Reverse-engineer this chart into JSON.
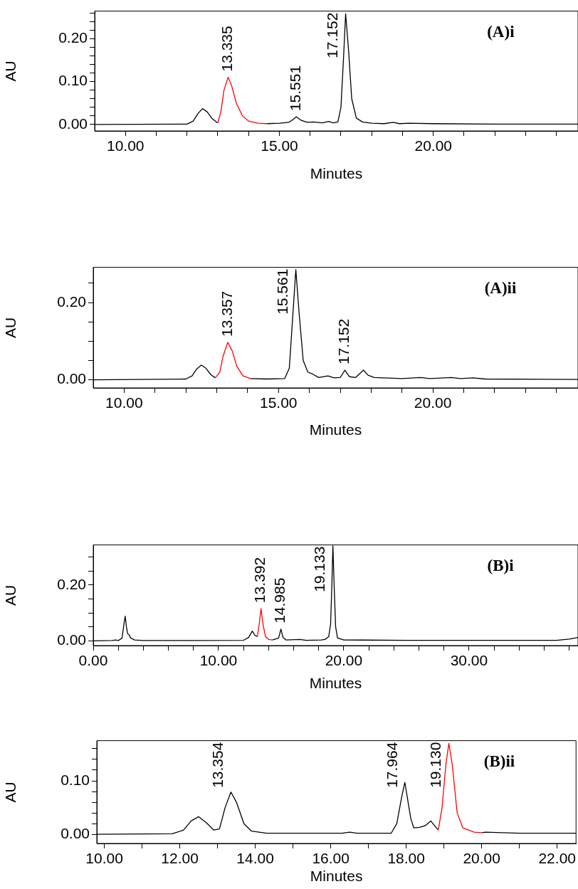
{
  "chart_data": [
    {
      "type": "line",
      "title": "(A)i",
      "xlabel": "Minutes",
      "ylabel": "AU",
      "marker": "none",
      "xlim": [
        9.0,
        24.7
      ],
      "xticks": [
        {
          "value": 10,
          "label": "10.00"
        },
        {
          "value": 11,
          "label": null
        },
        {
          "value": 12,
          "label": null
        },
        {
          "value": 13,
          "label": null
        },
        {
          "value": 14,
          "label": null
        },
        {
          "value": 15,
          "label": "15.00"
        },
        {
          "value": 16,
          "label": null
        },
        {
          "value": 17,
          "label": null
        },
        {
          "value": 18,
          "label": null
        },
        {
          "value": 19,
          "label": null
        },
        {
          "value": 20,
          "label": "20.00"
        },
        {
          "value": 21,
          "label": null
        },
        {
          "value": 22,
          "label": null
        },
        {
          "value": 23,
          "label": null
        },
        {
          "value": 24,
          "label": null
        }
      ],
      "ylim": [
        -0.015,
        0.264
      ],
      "yticks": [
        {
          "value": 0,
          "label": "0.00"
        },
        {
          "value": 0.02,
          "label": null
        },
        {
          "value": 0.04,
          "label": null
        },
        {
          "value": 0.06,
          "label": null
        },
        {
          "value": 0.08,
          "label": null
        },
        {
          "value": 0.1,
          "label": "0.10"
        },
        {
          "value": 0.12,
          "label": null
        },
        {
          "value": 0.14,
          "label": null
        },
        {
          "value": 0.16,
          "label": null
        },
        {
          "value": 0.18,
          "label": null
        },
        {
          "value": 0.2,
          "label": "0.20"
        },
        {
          "value": 0.22,
          "label": null
        },
        {
          "value": 0.24,
          "label": null
        },
        {
          "value": 0.26,
          "label": null
        }
      ],
      "series": [
        {
          "color": "#000000",
          "x": [
            9.0,
            12.0,
            12.2,
            12.35,
            12.5,
            12.65,
            12.8,
            12.95,
            13.0,
            13.1,
            14.6,
            15.0,
            15.3,
            15.45,
            15.551,
            15.7,
            15.9,
            16.1,
            16.4,
            16.6,
            16.75,
            16.9,
            17.0,
            17.08,
            17.152,
            17.25,
            17.35,
            17.5,
            17.7,
            18.0,
            18.4,
            18.7,
            18.9,
            19.2,
            20.0,
            22.0,
            24.7
          ],
          "values": [
            0,
            0.001,
            0.008,
            0.025,
            0.037,
            0.03,
            0.015,
            0.006,
            0.004,
            null,
            0.002,
            0.003,
            0.005,
            0.012,
            0.018,
            0.01,
            0.005,
            0.006,
            0.004,
            0.007,
            0.004,
            0.006,
            0.04,
            0.15,
            0.258,
            0.17,
            0.06,
            0.015,
            0.006,
            0.003,
            0.002,
            0.005,
            0.002,
            0.003,
            0.002,
            0.001,
            0.001
          ]
        },
        {
          "color": "#ff0000",
          "x": [
            13.0,
            13.1,
            13.2,
            13.335,
            13.45,
            13.6,
            13.8,
            14.0,
            14.3,
            14.6
          ],
          "values": [
            0.004,
            0.03,
            0.08,
            0.11,
            0.09,
            0.05,
            0.02,
            0.008,
            0.003,
            0.002
          ]
        }
      ],
      "annotations": [
        {
          "text": "13.335",
          "x": 13.335,
          "y": 0.11
        },
        {
          "text": "15.551",
          "x": 15.551,
          "y": 0.018
        },
        {
          "text": "17.152",
          "x": 17.152,
          "y": 0.258
        }
      ]
    },
    {
      "type": "line",
      "title": "(A)ii",
      "xlabel": "Minutes",
      "ylabel": "AU",
      "marker": "none",
      "xlim": [
        9.0,
        24.7
      ],
      "xticks": [
        {
          "value": 10,
          "label": "10.00"
        },
        {
          "value": 11,
          "label": null
        },
        {
          "value": 12,
          "label": null
        },
        {
          "value": 13,
          "label": null
        },
        {
          "value": 14,
          "label": null
        },
        {
          "value": 15,
          "label": "15.00"
        },
        {
          "value": 16,
          "label": null
        },
        {
          "value": 17,
          "label": null
        },
        {
          "value": 18,
          "label": null
        },
        {
          "value": 19,
          "label": null
        },
        {
          "value": 20,
          "label": "20.00"
        },
        {
          "value": 21,
          "label": null
        },
        {
          "value": 22,
          "label": null
        },
        {
          "value": 23,
          "label": null
        },
        {
          "value": 24,
          "label": null
        }
      ],
      "ylim": [
        -0.021,
        0.291
      ],
      "yticks": [
        {
          "value": 0,
          "label": "0.00"
        },
        {
          "value": 0.05,
          "label": null
        },
        {
          "value": 0.1,
          "label": null
        },
        {
          "value": 0.15,
          "label": null
        },
        {
          "value": 0.2,
          "label": "0.20"
        },
        {
          "value": 0.25,
          "label": null
        }
      ],
      "series": [
        {
          "color": "#000000",
          "x": [
            9.0,
            12.0,
            12.2,
            12.35,
            12.5,
            12.65,
            12.8,
            12.95,
            13.0,
            14.1,
            14.6,
            15.2,
            15.35,
            15.45,
            15.561,
            15.67,
            15.8,
            15.95,
            16.1,
            16.3,
            16.6,
            16.8,
            17.0,
            17.152,
            17.3,
            17.5,
            17.75,
            17.9,
            18.1,
            18.7,
            19.0,
            19.6,
            19.9,
            20.6,
            20.9,
            21.3,
            21.7,
            24.7
          ],
          "values": [
            0,
            0.002,
            0.01,
            0.028,
            0.038,
            0.03,
            0.014,
            0.005,
            null,
            0.003,
            0.002,
            0.003,
            0.03,
            0.15,
            0.285,
            0.17,
            0.05,
            0.02,
            0.015,
            0.006,
            0.01,
            0.005,
            0.006,
            0.025,
            0.008,
            0.006,
            0.025,
            0.012,
            0.006,
            0.004,
            0.003,
            0.006,
            0.003,
            0.006,
            0.003,
            0.005,
            0.002,
            0.001
          ]
        },
        {
          "color": "#ff0000",
          "x": [
            12.95,
            13.1,
            13.2,
            13.357,
            13.5,
            13.65,
            13.85,
            14.1
          ],
          "values": [
            0.005,
            0.02,
            0.06,
            0.097,
            0.075,
            0.035,
            0.01,
            0.003
          ]
        }
      ],
      "annotations": [
        {
          "text": "13.357",
          "x": 13.357,
          "y": 0.097
        },
        {
          "text": "15.561",
          "x": 15.561,
          "y": 0.285
        },
        {
          "text": "17.152",
          "x": 17.152,
          "y": 0.025
        }
      ]
    },
    {
      "type": "line",
      "title": "(B)i",
      "xlabel": "Minutes",
      "ylabel": "AU",
      "marker": "none",
      "xlim": [
        0,
        38.7
      ],
      "xticks": [
        {
          "value": 0,
          "label": "0.00"
        },
        {
          "value": 2,
          "label": null
        },
        {
          "value": 4,
          "label": null
        },
        {
          "value": 6,
          "label": null
        },
        {
          "value": 8,
          "label": null
        },
        {
          "value": 10,
          "label": "10.00"
        },
        {
          "value": 12,
          "label": null
        },
        {
          "value": 14,
          "label": null
        },
        {
          "value": 16,
          "label": null
        },
        {
          "value": 18,
          "label": null
        },
        {
          "value": 20,
          "label": "20.00"
        },
        {
          "value": 22,
          "label": null
        },
        {
          "value": 24,
          "label": null
        },
        {
          "value": 26,
          "label": null
        },
        {
          "value": 28,
          "label": null
        },
        {
          "value": 30,
          "label": "30.00"
        },
        {
          "value": 32,
          "label": null
        },
        {
          "value": 34,
          "label": null
        },
        {
          "value": 36,
          "label": null
        },
        {
          "value": 38,
          "label": null
        }
      ],
      "ylim": [
        -0.017,
        0.343
      ],
      "yticks": [
        {
          "value": 0,
          "label": "0.00"
        },
        {
          "value": 0.05,
          "label": null
        },
        {
          "value": 0.1,
          "label": null
        },
        {
          "value": 0.15,
          "label": null
        },
        {
          "value": 0.2,
          "label": "0.20"
        },
        {
          "value": 0.25,
          "label": null
        },
        {
          "value": 0.3,
          "label": null
        }
      ],
      "series": [
        {
          "color": "#000000",
          "x": [
            0,
            1.5,
            1.8,
            2.0,
            2.3,
            2.45,
            2.55,
            2.65,
            2.75,
            2.85,
            3.0,
            3.3,
            4.0,
            8.0,
            12.0,
            12.4,
            12.7,
            12.9,
            13.1,
            13.2,
            14.3,
            14.8,
            14.985,
            15.15,
            15.4,
            16.5,
            17.0,
            18.2,
            18.5,
            18.8,
            18.95,
            19.05,
            19.133,
            19.23,
            19.35,
            19.5,
            20.0,
            25.0,
            37.0,
            38.0,
            38.7
          ],
          "values": [
            0,
            0.001,
            0.003,
            0.001,
            0.01,
            0.06,
            0.088,
            0.05,
            0.025,
            0.022,
            0.01,
            0.003,
            0.001,
            0.001,
            0.002,
            0.012,
            0.035,
            0.02,
            0.015,
            null,
            0.003,
            0.01,
            0.042,
            0.012,
            0.003,
            0.005,
            0.002,
            0.003,
            0.005,
            0.015,
            0.06,
            0.2,
            0.34,
            0.2,
            0.05,
            0.01,
            0.003,
            0.002,
            0.002,
            0.006,
            0.012
          ]
        },
        {
          "color": "#ff0000",
          "x": [
            13.1,
            13.25,
            13.392,
            13.55,
            13.75,
            14.0,
            14.3
          ],
          "values": [
            0.015,
            0.06,
            0.115,
            0.06,
            0.015,
            0.005,
            0.003
          ]
        }
      ],
      "annotations": [
        {
          "text": "13.392",
          "x": 13.392,
          "y": 0.115
        },
        {
          "text": "14.985",
          "x": 14.985,
          "y": 0.042
        },
        {
          "text": "19.133",
          "x": 19.133,
          "y": 0.34
        }
      ]
    },
    {
      "type": "line",
      "title": "(B)ii",
      "xlabel": "Minutes",
      "ylabel": "AU",
      "marker": "none",
      "xlim": [
        9.8,
        22.5
      ],
      "xticks": [
        {
          "value": 10,
          "label": "10.00"
        },
        {
          "value": 11,
          "label": null
        },
        {
          "value": 12,
          "label": "12.00"
        },
        {
          "value": 13,
          "label": null
        },
        {
          "value": 14,
          "label": "14.00"
        },
        {
          "value": 15,
          "label": null
        },
        {
          "value": 16,
          "label": "16.00"
        },
        {
          "value": 17,
          "label": null
        },
        {
          "value": 18,
          "label": "18.00"
        },
        {
          "value": 19,
          "label": null
        },
        {
          "value": 20,
          "label": "20.00"
        },
        {
          "value": 21,
          "label": null
        },
        {
          "value": 22,
          "label": "22.00"
        }
      ],
      "ylim": [
        -0.017,
        0.175
      ],
      "yticks": [
        {
          "value": 0,
          "label": "0.00"
        },
        {
          "value": 0.02,
          "label": null
        },
        {
          "value": 0.04,
          "label": null
        },
        {
          "value": 0.06,
          "label": null
        },
        {
          "value": 0.08,
          "label": null
        },
        {
          "value": 0.1,
          "label": "0.10"
        },
        {
          "value": 0.12,
          "label": null
        },
        {
          "value": 0.14,
          "label": null
        },
        {
          "value": 0.16,
          "label": null
        }
      ],
      "series": [
        {
          "color": "#000000",
          "x": [
            9.8,
            11.8,
            12.1,
            12.3,
            12.5,
            12.7,
            12.9,
            13.05,
            13.2,
            13.354,
            13.5,
            13.7,
            13.9,
            14.3,
            16.3,
            16.5,
            16.7,
            17.6,
            17.75,
            17.88,
            17.964,
            18.05,
            18.12,
            18.2,
            18.35,
            18.5,
            18.65,
            18.8,
            18.85,
            18.9,
            20.0,
            20.1,
            21.0,
            22.5
          ],
          "values": [
            0,
            0.001,
            0.008,
            0.025,
            0.033,
            0.022,
            0.008,
            0.01,
            0.05,
            0.079,
            0.06,
            0.02,
            0.006,
            0.002,
            0.002,
            0.004,
            0.002,
            0.002,
            0.02,
            0.07,
            0.097,
            0.06,
            0.03,
            0.012,
            0.013,
            0.016,
            0.025,
            0.012,
            0.008,
            null,
            0.003,
            0.004,
            0.002,
            0.002
          ]
        },
        {
          "color": "#ff0000",
          "x": [
            18.85,
            18.95,
            19.05,
            19.13,
            19.22,
            19.35,
            19.5,
            19.8,
            20.0
          ],
          "values": [
            0.008,
            0.05,
            0.13,
            0.17,
            0.13,
            0.04,
            0.012,
            0.004,
            0.003
          ]
        }
      ],
      "annotations": [
        {
          "text": "13.354",
          "x": 13.354,
          "y": 0.079
        },
        {
          "text": "17.964",
          "x": 17.964,
          "y": 0.097
        },
        {
          "text": "19.130",
          "x": 19.13,
          "y": 0.17
        }
      ]
    }
  ]
}
